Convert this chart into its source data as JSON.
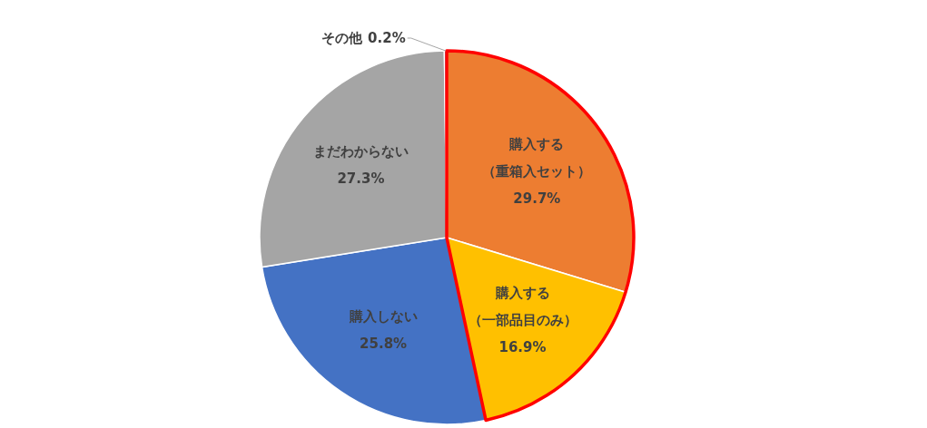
{
  "chart_data": {
    "type": "pie",
    "categories": [
      "購入する（重箱入セット）",
      "購入する（一部品目のみ）",
      "購入しない",
      "まだわからない",
      "その他"
    ],
    "values": [
      29.7,
      16.9,
      25.8,
      27.3,
      0.2
    ],
    "value_labels": [
      "29.7%",
      "16.9%",
      "25.8%",
      "27.3%",
      "0.2%"
    ],
    "colors": [
      "#ed7d31",
      "#ffc000",
      "#4472c4",
      "#a5a5a5",
      "#5b9bd5"
    ]
  }
}
